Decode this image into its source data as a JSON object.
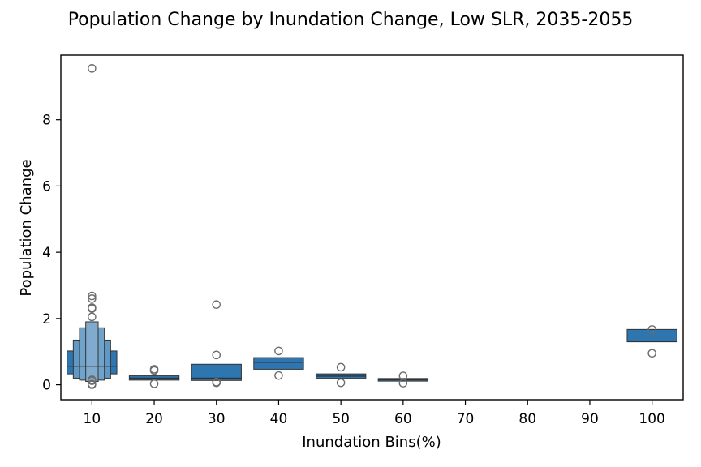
{
  "chart_data": {
    "type": "boxen",
    "title": "Population Change by Inundation Change, Low SLR, 2035-2055",
    "xlabel": "Inundation Bins(%)",
    "ylabel": "Population Change",
    "categories": [
      "10",
      "20",
      "30",
      "40",
      "50",
      "60",
      "70",
      "80",
      "90",
      "100"
    ],
    "y_ticks": [
      0,
      2,
      4,
      6,
      8
    ],
    "ylim": [
      -0.45,
      9.95
    ],
    "grid": false,
    "color": "#2e76b0",
    "boxes": [
      {
        "category": "10",
        "median": 0.56,
        "levels": [
          [
            0.33,
            1.02
          ],
          [
            0.2,
            1.35
          ],
          [
            0.14,
            1.72
          ],
          [
            0.1,
            1.9
          ]
        ],
        "outliers": [
          9.55,
          2.68,
          2.6,
          2.33,
          2.3,
          2.05,
          0.12,
          0.15,
          0.0,
          0.02
        ]
      },
      {
        "category": "20",
        "median": 0.2,
        "levels": [
          [
            0.14,
            0.27
          ]
        ],
        "outliers": [
          0.47,
          0.43,
          0.03
        ]
      },
      {
        "category": "30",
        "median": 0.2,
        "levels": [
          [
            0.13,
            0.62
          ]
        ],
        "outliers": [
          2.42,
          0.9,
          0.08,
          0.06
        ]
      },
      {
        "category": "40",
        "median": 0.68,
        "levels": [
          [
            0.47,
            0.82
          ]
        ],
        "outliers": [
          1.02,
          0.28
        ]
      },
      {
        "category": "50",
        "median": 0.26,
        "levels": [
          [
            0.19,
            0.33
          ]
        ],
        "outliers": [
          0.53,
          0.06
        ]
      },
      {
        "category": "60",
        "median": 0.15,
        "levels": [
          [
            0.11,
            0.19
          ]
        ],
        "outliers": [
          0.27,
          0.05
        ]
      },
      {
        "category": "100",
        "median": 1.3,
        "levels": [
          [
            1.3,
            1.67
          ]
        ],
        "outliers": [
          1.67,
          0.95
        ]
      }
    ]
  }
}
